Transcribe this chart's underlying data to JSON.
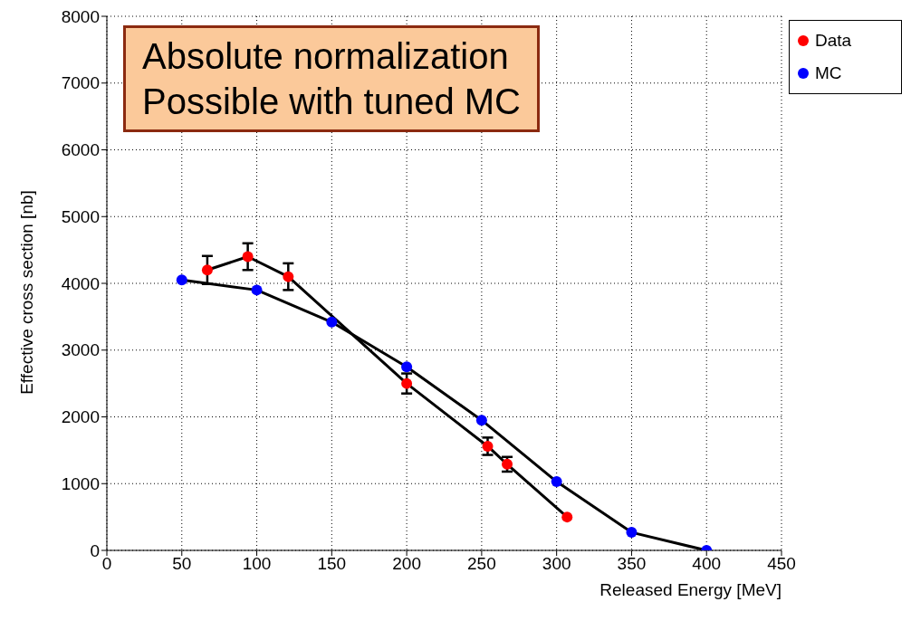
{
  "chart_data": {
    "type": "line",
    "xlabel": "Released Energy [MeV]",
    "ylabel": "Effective cross section [nb]",
    "annotations": [
      "Absolute normalization\nPossible with tuned MC"
    ],
    "series": [
      {
        "name": "Data",
        "color": "#ff0000",
        "x": [
          67,
          94,
          121,
          200,
          254,
          267,
          307
        ],
        "values": [
          4200,
          4400,
          4100,
          2500,
          1560,
          1290,
          500
        ],
        "errors": [
          210,
          200,
          200,
          150,
          130,
          110,
          null
        ]
      },
      {
        "name": "MC",
        "color": "#0000ff",
        "x": [
          50,
          100,
          150,
          200,
          250,
          300,
          350,
          400
        ],
        "values": [
          4050,
          3900,
          3420,
          2750,
          1950,
          1030,
          270,
          0
        ]
      }
    ],
    "xlim": [
      0,
      450
    ],
    "xticks": [
      0,
      50,
      100,
      150,
      200,
      250,
      300,
      350,
      400,
      450
    ],
    "ylim": [
      0,
      8000
    ],
    "yticks": [
      0,
      1000,
      2000,
      3000,
      4000,
      5000,
      6000,
      7000,
      8000
    ],
    "grid": true,
    "legend": "top right",
    "marker": "circle",
    "line_style": "solid"
  }
}
